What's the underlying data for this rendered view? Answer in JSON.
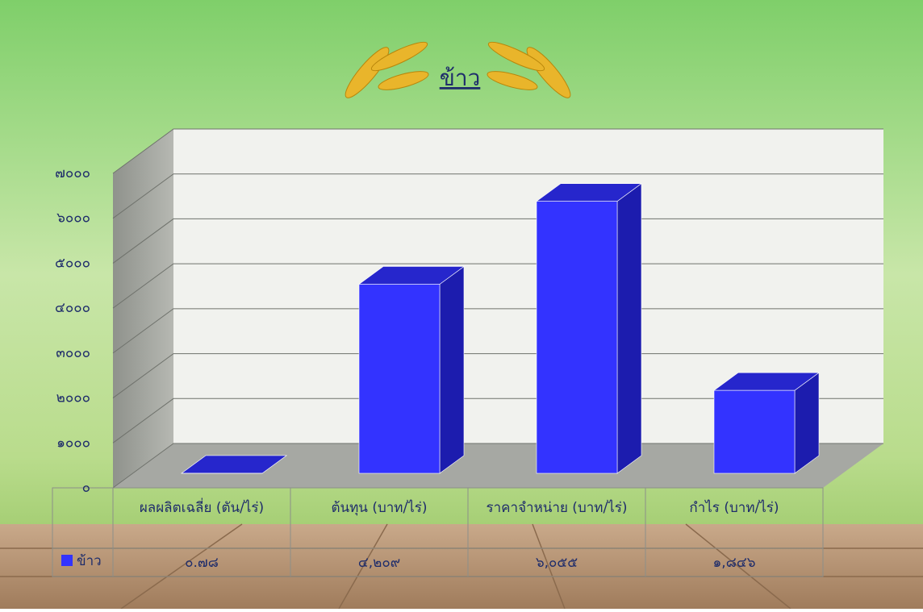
{
  "chart_data": {
    "type": "bar3d",
    "title": "ข้าว",
    "categories": [
      "ผลผลิตเฉลี่ย (ตัน/ไร่)",
      "ต้นทุน (บาท/ไร่)",
      "ราคาจำหน่าย (บาท/ไร่)",
      "กำไร (บาท/ไร่)"
    ],
    "series": [
      {
        "name": "ข้าว",
        "color": "#3333ff",
        "values": [
          0.78,
          4209,
          6055,
          1846
        ],
        "value_labels": [
          "๐.๗๘",
          "๔,๒๐๙",
          "๖,๐๕๕",
          "๑,๘๔๖"
        ]
      }
    ],
    "ylim": [
      0,
      7000
    ],
    "yticks": [
      {
        "value": 0,
        "label": "๐"
      },
      {
        "value": 1000,
        "label": "๑๐๐๐"
      },
      {
        "value": 2000,
        "label": "๒๐๐๐"
      },
      {
        "value": 3000,
        "label": "๓๐๐๐"
      },
      {
        "value": 4000,
        "label": "๔๐๐๐"
      },
      {
        "value": 5000,
        "label": "๕๐๐๐"
      },
      {
        "value": 6000,
        "label": "๖๐๐๐"
      },
      {
        "value": 7000,
        "label": "๗๐๐๐"
      }
    ],
    "grid": true
  }
}
